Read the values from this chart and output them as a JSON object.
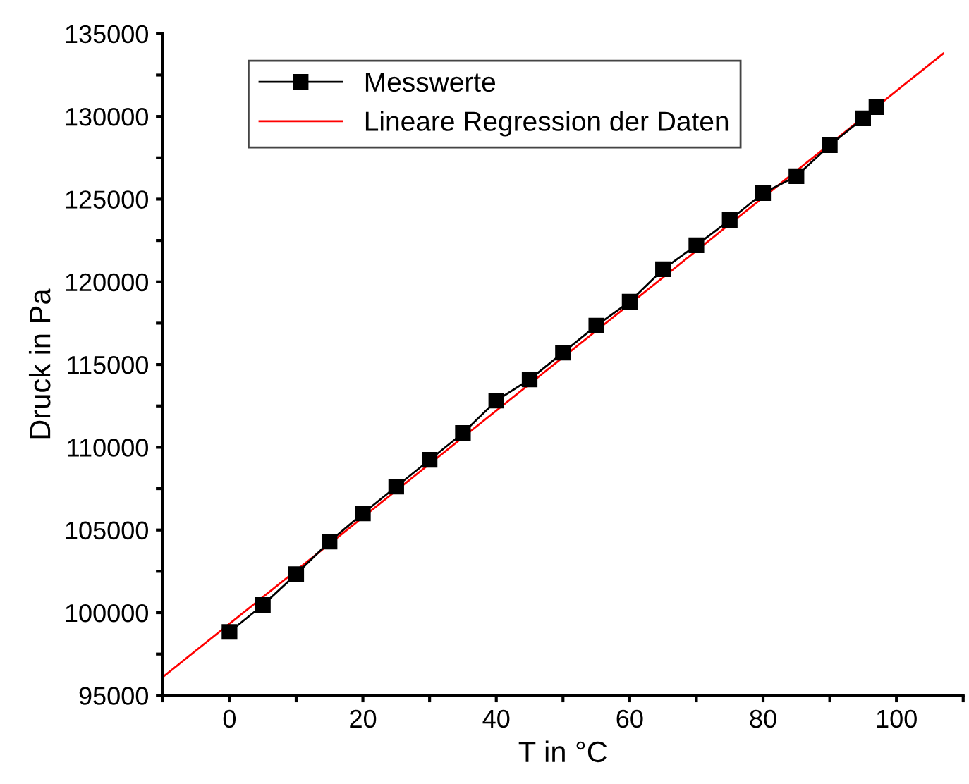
{
  "chart_data": {
    "type": "line",
    "xlabel": "T in °C",
    "ylabel": "Druck in Pa",
    "xlim": [
      -10,
      110
    ],
    "xticks": [
      {
        "value": -10,
        "label": null
      },
      0,
      {
        "value": 10,
        "label": null
      },
      20,
      {
        "value": 30,
        "label": null
      },
      40,
      {
        "value": 50,
        "label": null
      },
      60,
      {
        "value": 70,
        "label": null
      },
      80,
      {
        "value": 90,
        "label": null
      },
      100,
      {
        "value": 110,
        "label": null
      }
    ],
    "ylim": [
      95000,
      135000
    ],
    "yticks": [
      95000,
      {
        "value": 97500,
        "label": null
      },
      100000,
      {
        "value": 102500,
        "label": null
      },
      105000,
      {
        "value": 107500,
        "label": null
      },
      110000,
      {
        "value": 112500,
        "label": null
      },
      115000,
      {
        "value": 117500,
        "label": null
      },
      120000,
      {
        "value": 122500,
        "label": null
      },
      125000,
      {
        "value": 127500,
        "label": null
      },
      130000,
      {
        "value": 132500,
        "label": null
      },
      135000
    ],
    "grid": false,
    "legend": "top left",
    "series": [
      {
        "name": "Messwerte",
        "color": "#000000",
        "marker": "square",
        "line_style": "solid",
        "x": [
          0,
          5,
          10,
          15,
          20,
          25,
          30,
          35,
          40,
          45,
          50,
          55,
          60,
          65,
          70,
          75,
          80,
          85,
          90,
          95,
          97
        ],
        "values": [
          98840,
          100460,
          102330,
          104300,
          106000,
          107620,
          109240,
          110860,
          112820,
          114100,
          115720,
          117350,
          118800,
          120760,
          122210,
          123740,
          125360,
          126390,
          128260,
          129880,
          130560
        ]
      },
      {
        "name": "Lineare Regression der Daten",
        "color": "#ff0000",
        "marker": "none",
        "line_style": "solid",
        "x": [
          -10,
          107
        ],
        "values": [
          96110,
          133800
        ]
      }
    ]
  }
}
